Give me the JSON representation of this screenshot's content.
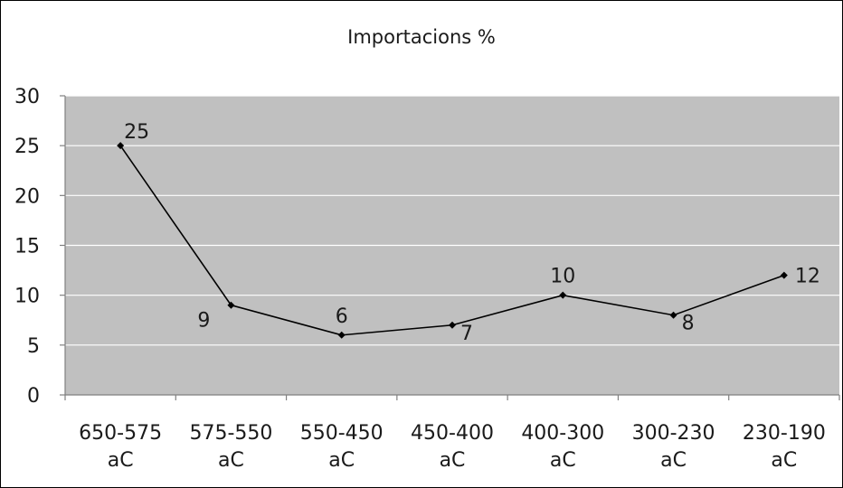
{
  "chart_data": {
    "type": "line",
    "title": "Importacions %",
    "categories": [
      [
        "650-575",
        "aC"
      ],
      [
        "575-550",
        "aC"
      ],
      [
        "550-450",
        "aC"
      ],
      [
        "450-400",
        "aC"
      ],
      [
        "400-300",
        "aC"
      ],
      [
        "300-230",
        "aC"
      ],
      [
        "230-190",
        "aC"
      ]
    ],
    "values": [
      25,
      9,
      6,
      7,
      10,
      8,
      12
    ],
    "data_labels": [
      "25",
      "9",
      "6",
      "7",
      "10",
      "8",
      "12"
    ],
    "label_positions": [
      "above-right",
      "below-left",
      "above",
      "below-right",
      "above",
      "below-right",
      "right"
    ],
    "ylim": [
      0,
      30
    ],
    "yticks": [
      "0",
      "5",
      "10",
      "15",
      "20",
      "25",
      "30"
    ],
    "xlabel": "",
    "ylabel": "",
    "grid": true,
    "legend": "none",
    "colors": {
      "plot_background": "#c0c0c0",
      "gridline": "#ffffff",
      "line": "#000000",
      "marker": "#000000",
      "text": "#1a1a1a"
    }
  }
}
